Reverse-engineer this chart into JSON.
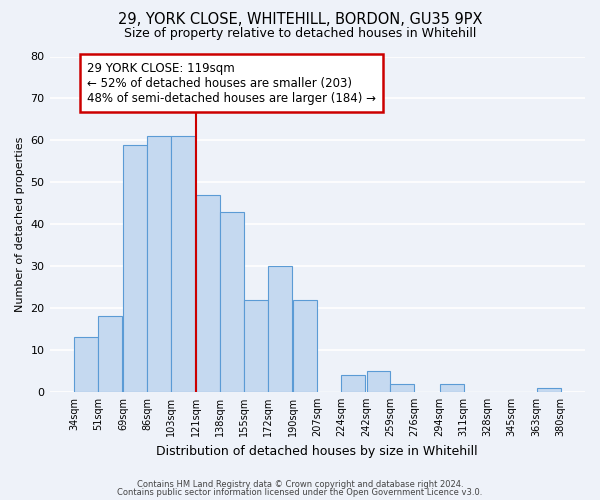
{
  "title1": "29, YORK CLOSE, WHITEHILL, BORDON, GU35 9PX",
  "title2": "Size of property relative to detached houses in Whitehill",
  "xlabel": "Distribution of detached houses by size in Whitehill",
  "ylabel": "Number of detached properties",
  "bar_left_edges": [
    34,
    51,
    69,
    86,
    103,
    121,
    138,
    155,
    172,
    190,
    207,
    224,
    242,
    259,
    276,
    294,
    311,
    328,
    345,
    363
  ],
  "bar_heights": [
    13,
    18,
    59,
    61,
    61,
    47,
    43,
    22,
    30,
    22,
    0,
    4,
    5,
    2,
    0,
    2,
    0,
    0,
    0,
    1
  ],
  "bin_width": 17,
  "bar_color": "#c5d9f0",
  "bar_edge_color": "#5b9bd5",
  "x_tick_labels": [
    "34sqm",
    "51sqm",
    "69sqm",
    "86sqm",
    "103sqm",
    "121sqm",
    "138sqm",
    "155sqm",
    "172sqm",
    "190sqm",
    "207sqm",
    "224sqm",
    "242sqm",
    "259sqm",
    "276sqm",
    "294sqm",
    "311sqm",
    "328sqm",
    "345sqm",
    "363sqm",
    "380sqm"
  ],
  "ylim": [
    0,
    80
  ],
  "yticks": [
    0,
    10,
    20,
    30,
    40,
    50,
    60,
    70,
    80
  ],
  "vline_x": 121,
  "vline_color": "#cc0000",
  "annotation_title": "29 YORK CLOSE: 119sqm",
  "annotation_line1": "← 52% of detached houses are smaller (203)",
  "annotation_line2": "48% of semi-detached houses are larger (184) →",
  "footer1": "Contains HM Land Registry data © Crown copyright and database right 2024.",
  "footer2": "Contains public sector information licensed under the Open Government Licence v3.0.",
  "background_color": "#eef2f9",
  "grid_color": "#ffffff"
}
